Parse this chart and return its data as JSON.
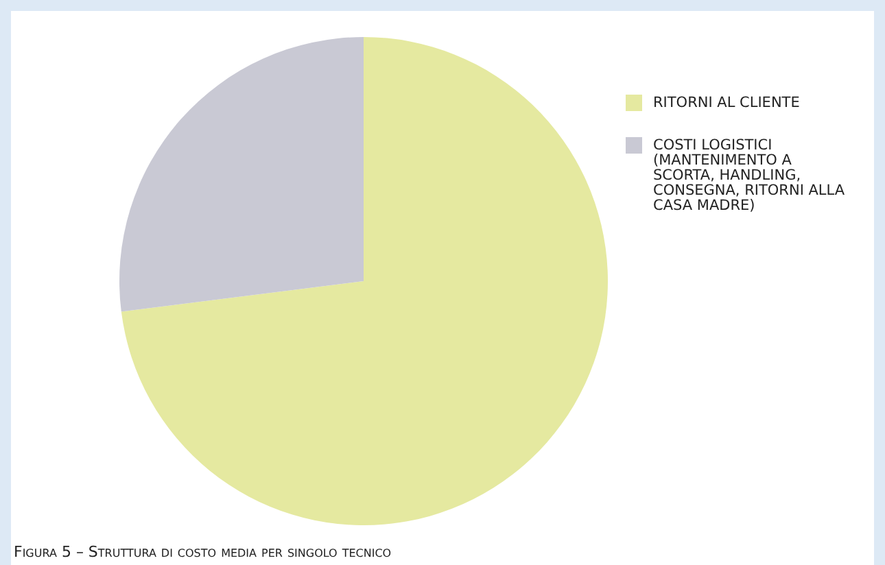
{
  "chart_data": {
    "type": "pie",
    "categories": [
      "RITORNI AL CLIENTE",
      "COSTI LOGISTICI (MANTENIMENTO A SCORTA, HANDLING, CONSEGNA, RITORNI ALLA CASA MADRE)"
    ],
    "values": [
      73,
      27
    ],
    "colors": [
      "#e5e9a0",
      "#c9c9d4"
    ],
    "legend": "right",
    "annotations": [
      "Figura 5 – Struttura di costo media per singolo tecnico"
    ]
  }
}
